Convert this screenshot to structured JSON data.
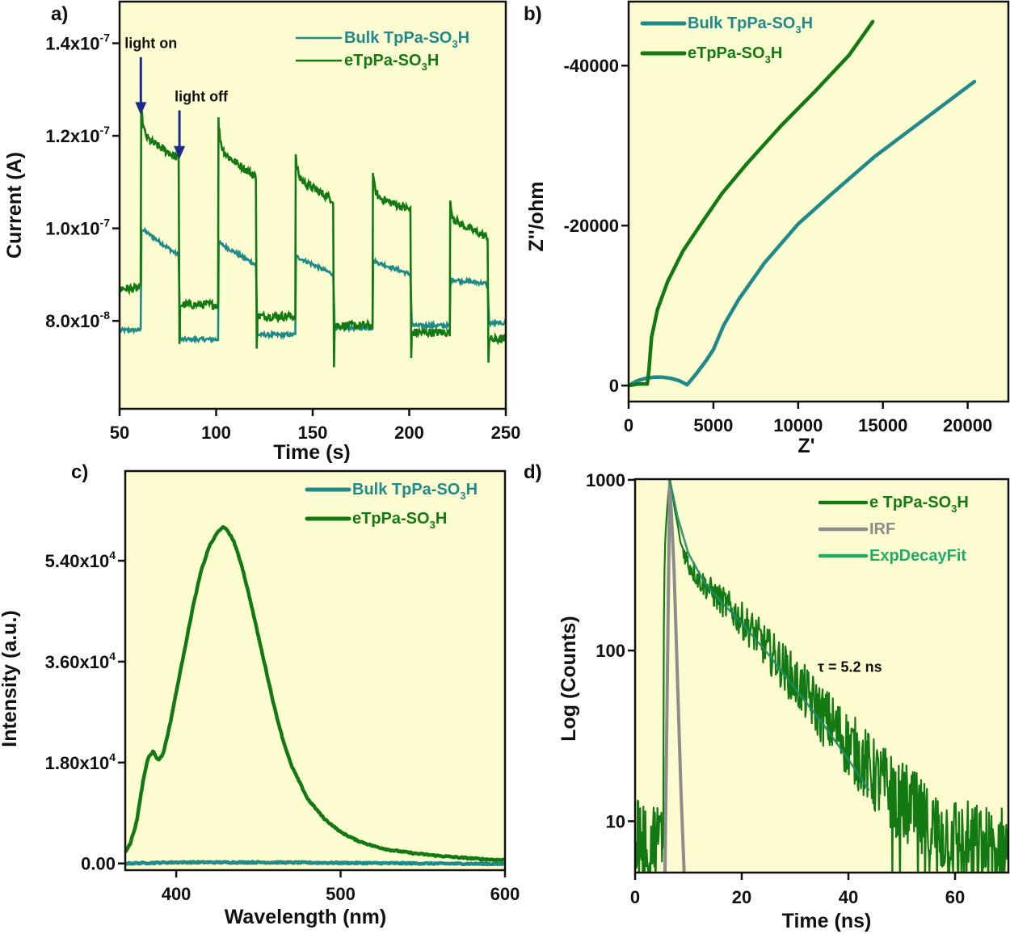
{
  "figure": {
    "background_plot": "#fdfbd0",
    "colors": {
      "bulk": "#1e8a8a",
      "etppa": "#137a13",
      "irf": "#8c8c8c",
      "fit": "#1fae6a",
      "arrow": "#1c2a8c",
      "axis": "#111111"
    }
  },
  "chart_data": [
    {
      "id": "a",
      "panel_label": "a)",
      "type": "line",
      "title": "",
      "xlabel": "Time (s)",
      "ylabel": "Current (A)",
      "xlim": [
        50,
        250
      ],
      "ylim": [
        6.1e-08,
        1.49e-07
      ],
      "xticks": [
        50,
        100,
        150,
        200,
        250
      ],
      "xtick_labels": [
        "50",
        "100",
        "150",
        "200",
        "250"
      ],
      "yticks": [
        8e-08,
        1e-07,
        1.2e-07,
        1.4e-07
      ],
      "ytick_labels": [
        {
          "mant": "8.0x10",
          "exp": "-8"
        },
        {
          "mant": "1.0x10",
          "exp": "-7"
        },
        {
          "mant": "1.2x10",
          "exp": "-7"
        },
        {
          "mant": "1.4x10",
          "exp": "-7"
        }
      ],
      "grid": false,
      "legend_position": "top-right",
      "legend": [
        {
          "pre": "Bulk TpPa-SO",
          "sub": "3",
          "post": "H",
          "color_key": "bulk"
        },
        {
          "pre": "eTpPa-SO",
          "sub": "3",
          "post": "H",
          "color_key": "etppa"
        }
      ],
      "annotations": [
        {
          "text": "light on",
          "x": 61,
          "arrow_from_y": 1.37e-07,
          "arrow_to_y": 1.245e-07
        },
        {
          "text": "light off",
          "x": 81,
          "arrow_from_y": 1.255e-07,
          "arrow_to_y": 1.15e-07
        }
      ],
      "on_off_cycles": [
        {
          "on": 61,
          "off": 81
        },
        {
          "on": 101,
          "off": 121
        },
        {
          "on": 141,
          "off": 161
        },
        {
          "on": 181,
          "off": 201
        },
        {
          "on": 221,
          "off": 241
        }
      ],
      "series": [
        {
          "name": "Bulk TpPa-SO3H",
          "color_key": "bulk",
          "dark_levels": [
            7.8e-08,
            7.6e-08,
            7.7e-08,
            7.85e-08,
            7.9e-08,
            7.95e-08
          ],
          "light_start": [
            1e-07,
            9.7e-08,
            9.4e-08,
            9.3e-08,
            8.9e-08
          ],
          "light_end": [
            9.4e-08,
            9.2e-08,
            9e-08,
            9e-08,
            8.8e-08
          ],
          "noise": 4e-10
        },
        {
          "name": "eTpPa-SO3H",
          "color_key": "etppa",
          "dark_levels": [
            8.7e-08,
            8.35e-08,
            8.1e-08,
            7.9e-08,
            7.75e-08,
            7.6e-08
          ],
          "light_peak": [
            1.27e-07,
            1.24e-07,
            1.16e-07,
            1.12e-07,
            1.06e-07
          ],
          "light_start": [
            1.2e-07,
            1.17e-07,
            1.11e-07,
            1.07e-07,
            1.02e-07
          ],
          "light_end": [
            1.15e-07,
            1.11e-07,
            1.06e-07,
            1.04e-07,
            9.8e-08
          ],
          "off_dip": [
            7.5e-08,
            7.4e-08,
            7e-08,
            7.2e-08,
            7.1e-08
          ],
          "noise": 9e-10
        }
      ]
    },
    {
      "id": "b",
      "panel_label": "b)",
      "type": "line",
      "title": "",
      "xlabel": "Z'",
      "ylabel": "Z''/ohm",
      "xlim": [
        0,
        22400
      ],
      "ylim": [
        2000,
        -48000
      ],
      "xticks": [
        0,
        5000,
        10000,
        15000,
        20000
      ],
      "xtick_labels": [
        "0",
        "5000",
        "10000",
        "15000",
        "20000"
      ],
      "yticks": [
        0,
        -20000,
        -40000
      ],
      "ytick_labels": [
        "0",
        "-20000",
        "-40000"
      ],
      "grid": false,
      "legend_position": "top-left",
      "legend": [
        {
          "pre": "Bulk TpPa-SO",
          "sub": "3",
          "post": "H",
          "color_key": "bulk"
        },
        {
          "pre": "eTpPa-SO",
          "sub": "3",
          "post": "H",
          "color_key": "etppa"
        }
      ],
      "series": [
        {
          "name": "Bulk TpPa-SO3H",
          "color_key": "bulk",
          "x": [
            0,
            500,
            1000,
            1500,
            2000,
            2500,
            3000,
            3450,
            4000,
            4600,
            5000,
            5600,
            6500,
            8000,
            10000,
            12000,
            14500,
            17000,
            20400
          ],
          "y": [
            0,
            -600,
            -900,
            -1050,
            -1050,
            -900,
            -600,
            -100,
            -1500,
            -3200,
            -4500,
            -7500,
            -10800,
            -15300,
            -20200,
            -24000,
            -28600,
            -32600,
            -38000
          ]
        },
        {
          "name": "eTpPa-SO3H",
          "color_key": "etppa",
          "x": [
            0,
            600,
            1100,
            1200,
            1350,
            1700,
            2300,
            3200,
            4300,
            5500,
            7000,
            9000,
            11000,
            13000,
            14400
          ],
          "y": [
            0,
            -200,
            -200,
            -2000,
            -6000,
            -9500,
            -13000,
            -16800,
            -20300,
            -24000,
            -27800,
            -32500,
            -36800,
            -41300,
            -45500
          ]
        }
      ]
    },
    {
      "id": "c",
      "panel_label": "c)",
      "type": "line",
      "title": "",
      "xlabel": "Wavelength (nm)",
      "ylabel": "Intensity (a.u.)",
      "xlim": [
        369,
        600
      ],
      "ylim": [
        -1200,
        70000
      ],
      "xticks": [
        400,
        500,
        600
      ],
      "xtick_labels": [
        "400",
        "500",
        "600"
      ],
      "yticks": [
        0,
        18000,
        36000,
        54000
      ],
      "ytick_labels": [
        {
          "mant": "0.00",
          "exp": ""
        },
        {
          "mant": "1.80x10",
          "exp": "4"
        },
        {
          "mant": "3.60x10",
          "exp": "4"
        },
        {
          "mant": "5.40x10",
          "exp": "4"
        }
      ],
      "grid": false,
      "legend_position": "top-right",
      "legend": [
        {
          "pre": "Bulk TpPa-SO",
          "sub": "3",
          "post": "H",
          "color_key": "bulk"
        },
        {
          "pre": "eTpPa-SO",
          "sub": "3",
          "post": "H",
          "color_key": "etppa"
        }
      ],
      "series": [
        {
          "name": "Bulk TpPa-SO3H",
          "color_key": "bulk",
          "x": [
            369,
            400,
            450,
            500,
            550,
            600
          ],
          "y": [
            0,
            200,
            200,
            100,
            0,
            -100
          ]
        },
        {
          "name": "eTpPa-SO3H",
          "color_key": "etppa",
          "x": [
            369,
            372,
            376,
            380,
            383,
            386,
            389,
            392,
            396,
            400,
            405,
            410,
            415,
            420,
            425,
            428,
            431,
            435,
            440,
            445,
            450,
            455,
            460,
            465,
            470,
            480,
            490,
            500,
            510,
            520,
            530,
            545,
            560,
            575,
            590,
            600
          ],
          "y": [
            2100,
            3500,
            7500,
            15000,
            19000,
            20000,
            18400,
            19500,
            24500,
            30500,
            38000,
            45500,
            52000,
            56500,
            59000,
            60000,
            59500,
            57500,
            53000,
            47000,
            40500,
            34000,
            27500,
            22000,
            17500,
            11500,
            8000,
            5600,
            4100,
            3100,
            2400,
            1800,
            1350,
            1000,
            700,
            600
          ]
        }
      ]
    },
    {
      "id": "d",
      "panel_label": "d)",
      "type": "line",
      "title": "",
      "xlabel": "Time (ns)",
      "ylabel": "Log (Counts)",
      "yscale": "log",
      "xlim": [
        0,
        70
      ],
      "ylim": [
        5,
        1010
      ],
      "xticks": [
        0,
        20,
        40,
        60
      ],
      "xtick_labels": [
        "0",
        "20",
        "40",
        "60"
      ],
      "yticks": [
        10,
        100,
        1000
      ],
      "ytick_labels": [
        "10",
        "100",
        "1000"
      ],
      "grid": false,
      "legend_position": "top-right",
      "legend": [
        {
          "pre": "e TpPa-SO",
          "sub": "3",
          "post": "H",
          "color_key": "etppa"
        },
        {
          "pre": "IRF",
          "sub": "",
          "post": "",
          "color_key": "irf"
        },
        {
          "pre": "ExpDecayFit",
          "sub": "",
          "post": "",
          "color_key": "fit"
        }
      ],
      "annotations": [
        {
          "text": "τ = 5.2 ns",
          "x": 35,
          "y": 75
        }
      ],
      "series": [
        {
          "name": "e TpPa-SO3H",
          "color_key": "etppa",
          "x": [
            0,
            5.3,
            5.6,
            6.5,
            7.5,
            8.5,
            10,
            12,
            15,
            20,
            25,
            30,
            35,
            40,
            45,
            50,
            55,
            60,
            65,
            70
          ],
          "y": [
            8,
            8,
            400,
            1000,
            650,
            430,
            320,
            260,
            210,
            150,
            100,
            65,
            42,
            28,
            18,
            13,
            9,
            8,
            7,
            7
          ],
          "noise_log_amplitude": 0.14
        },
        {
          "name": "IRF",
          "color_key": "irf",
          "x": [
            5.6,
            6.5,
            7.3,
            8.0,
            8.6,
            9.2
          ],
          "y": [
            5,
            1000,
            300,
            60,
            15,
            5
          ]
        },
        {
          "name": "ExpDecayFit",
          "color_key": "fit",
          "x": [
            6.5,
            8,
            10,
            13,
            16,
            20,
            25,
            30,
            35,
            40,
            44
          ],
          "y": [
            1000,
            600,
            370,
            250,
            195,
            145,
            95,
            60,
            38,
            23,
            15
          ]
        }
      ]
    }
  ]
}
